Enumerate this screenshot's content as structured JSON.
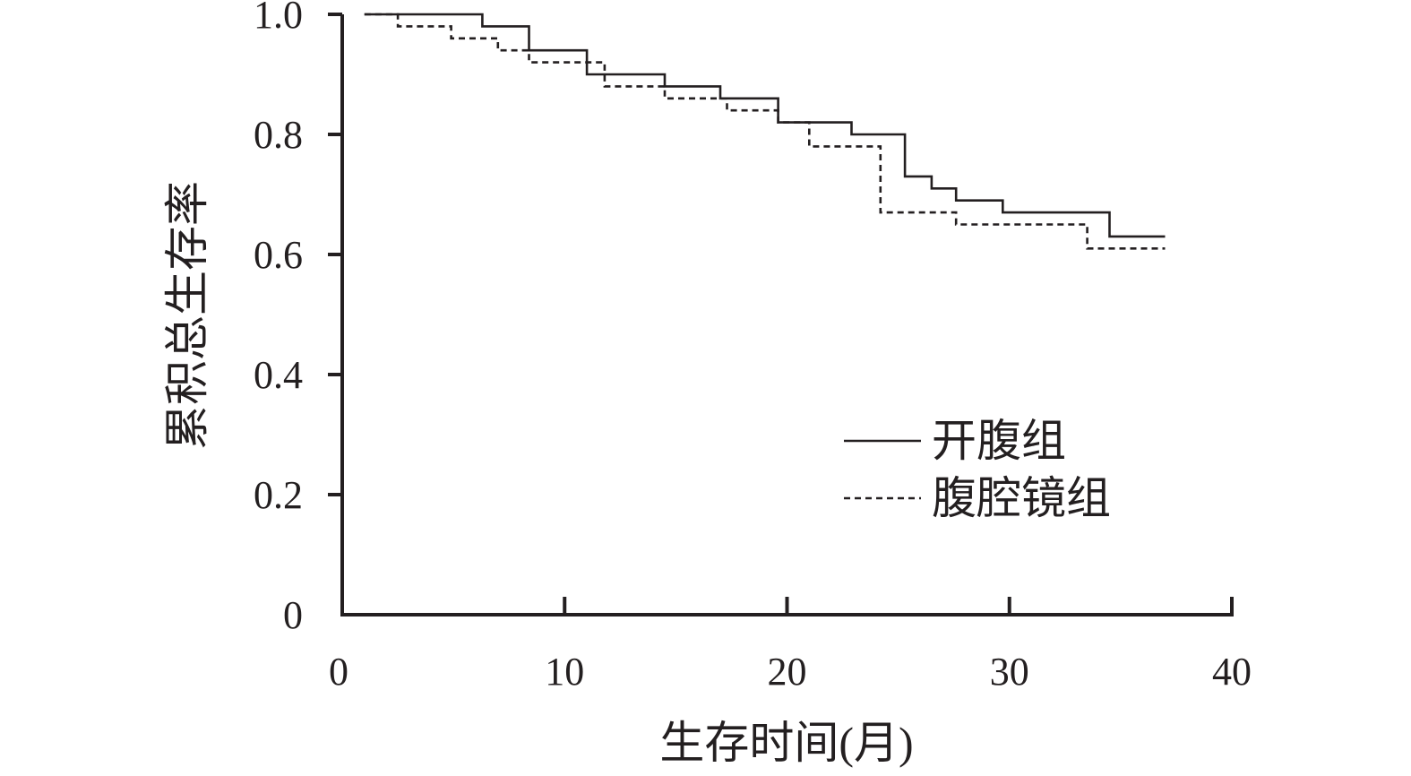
{
  "chart_data": {
    "type": "line",
    "chart_subtype": "step (Kaplan-Meier survival curve)",
    "title": "",
    "xlabel": "生存时间(月)",
    "ylabel": "累积总生存率",
    "xlim": [
      0,
      40
    ],
    "ylim": [
      0,
      1.0
    ],
    "x_ticks": [
      0,
      10,
      20,
      30,
      40
    ],
    "x_tick_labels": [
      "0",
      "10",
      "20",
      "30",
      "40"
    ],
    "y_ticks": [
      0,
      0.2,
      0.4,
      0.6,
      0.8,
      1.0
    ],
    "y_tick_labels": [
      "0",
      "0.2",
      "0.4",
      "0.6",
      "0.8",
      "1.0"
    ],
    "grid": false,
    "legend_position": "lower-right",
    "series": [
      {
        "name": "开腹组",
        "line_style": "solid",
        "color": "#231f20",
        "x": [
          1,
          6.3,
          8.4,
          11.0,
          14.5,
          17.0,
          19.6,
          22.9,
          25.3,
          26.5,
          27.6,
          29.7,
          34.5,
          37.0
        ],
        "y": [
          1.0,
          0.98,
          0.94,
          0.9,
          0.88,
          0.86,
          0.82,
          0.8,
          0.73,
          0.71,
          0.69,
          0.67,
          0.63,
          0.63
        ]
      },
      {
        "name": "腹腔镜组",
        "line_style": "dashed",
        "color": "#231f20",
        "x": [
          1,
          2.5,
          4.9,
          7.0,
          8.4,
          11.8,
          14.5,
          17.3,
          19.6,
          21.0,
          24.2,
          26.8,
          27.6,
          33.5,
          37.0
        ],
        "y": [
          1.0,
          0.98,
          0.96,
          0.94,
          0.92,
          0.88,
          0.86,
          0.84,
          0.82,
          0.78,
          0.67,
          0.67,
          0.65,
          0.61,
          0.61
        ]
      }
    ]
  }
}
